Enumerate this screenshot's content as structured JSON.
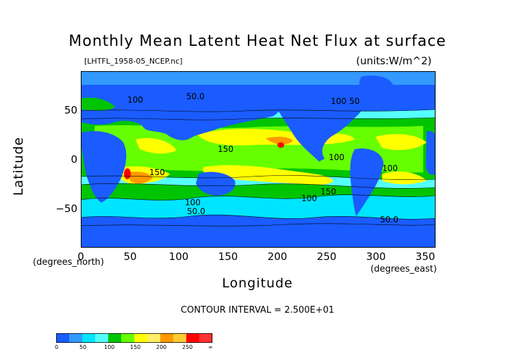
{
  "title": "Monthly Mean Latent Heat Net Flux at surface",
  "file_label": "[LHTFL_1958-05_NCEP.nc]",
  "units_label": "(units:W/m^2)",
  "x_axis": {
    "label": "Longitude",
    "note": "(degrees_east)",
    "ticks": [
      "0",
      "50",
      "100",
      "150",
      "200",
      "250",
      "300",
      "350"
    ],
    "range": [
      0,
      360
    ]
  },
  "y_axis": {
    "label": "Latitude",
    "note": "(degrees_north)",
    "ticks": [
      "50",
      "0",
      "−50"
    ],
    "range": [
      -90,
      90
    ]
  },
  "contour_interval_text": "CONTOUR INTERVAL = 2.500E+01",
  "contour_labels": [
    "100",
    "50.0",
    "100",
    "50",
    "150",
    "100",
    "100",
    "150",
    "100",
    "150",
    "100",
    "50.0",
    "50.0"
  ],
  "legend": {
    "labels": [
      "0",
      "50",
      "100",
      "150",
      "200",
      "250",
      "∞"
    ],
    "colors": [
      "#1a5cff",
      "#3399ff",
      "#00e5ff",
      "#55ffff",
      "#00c400",
      "#66ff00",
      "#ffff00",
      "#ffee66",
      "#ff9900",
      "#ffcc33",
      "#ff0000",
      "#ff3333"
    ]
  },
  "colors": {
    "band_0_25": "#1a5cff",
    "band_25_50": "#3399ff",
    "band_50_75": "#00e5ff",
    "band_75_100": "#55ffff",
    "band_100_125": "#00c400",
    "band_125_150": "#66ff00",
    "band_150_175": "#ffff00",
    "band_175_200": "#ffee66",
    "band_200_225": "#ff9900",
    "band_225_250": "#ffcc33",
    "band_250_plus": "#ff0000"
  }
}
